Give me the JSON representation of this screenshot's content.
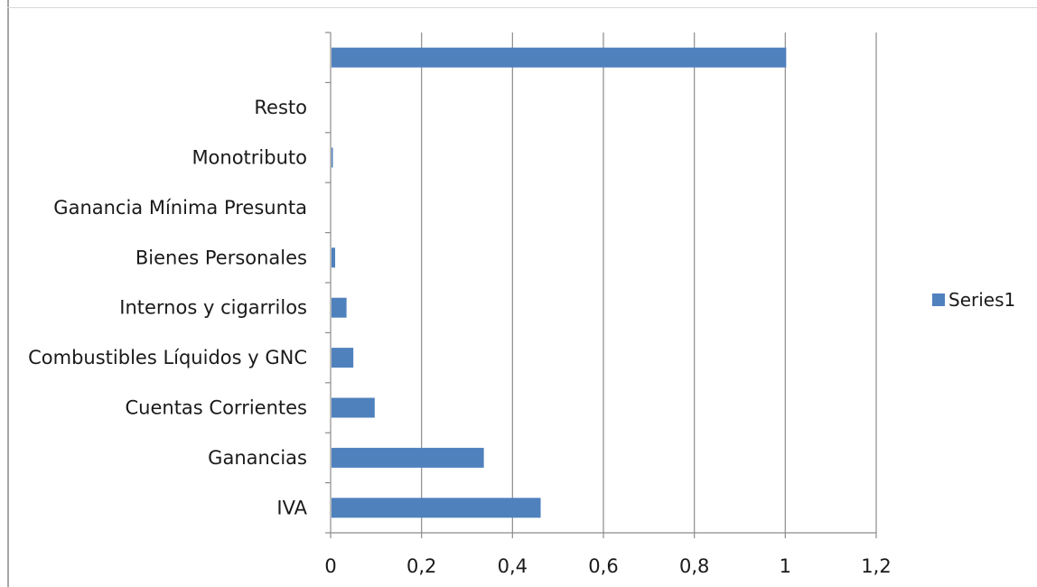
{
  "chart_data": {
    "type": "bar",
    "orientation": "horizontal",
    "categories": [
      "IVA",
      "Ganancias",
      "Cuentas Corrientes",
      "Combustibles Líquidos y GNC",
      "Internos y cigarrilos",
      "Bienes Personales",
      "Ganancia Mínima Presunta",
      "Monotributo",
      "Resto",
      ""
    ],
    "series": [
      {
        "name": "Series1",
        "values": [
          0.46,
          0.335,
          0.095,
          0.048,
          0.033,
          0.008,
          0.0,
          0.003,
          0.0,
          1.0
        ]
      }
    ],
    "xlim": [
      0,
      1.2
    ],
    "xticks": [
      "0",
      "0,2",
      "0,4",
      "0,6",
      "0,8",
      "1",
      "1,2"
    ],
    "grid": true,
    "legend_position": "right",
    "bar_color": "#4f81bd"
  }
}
